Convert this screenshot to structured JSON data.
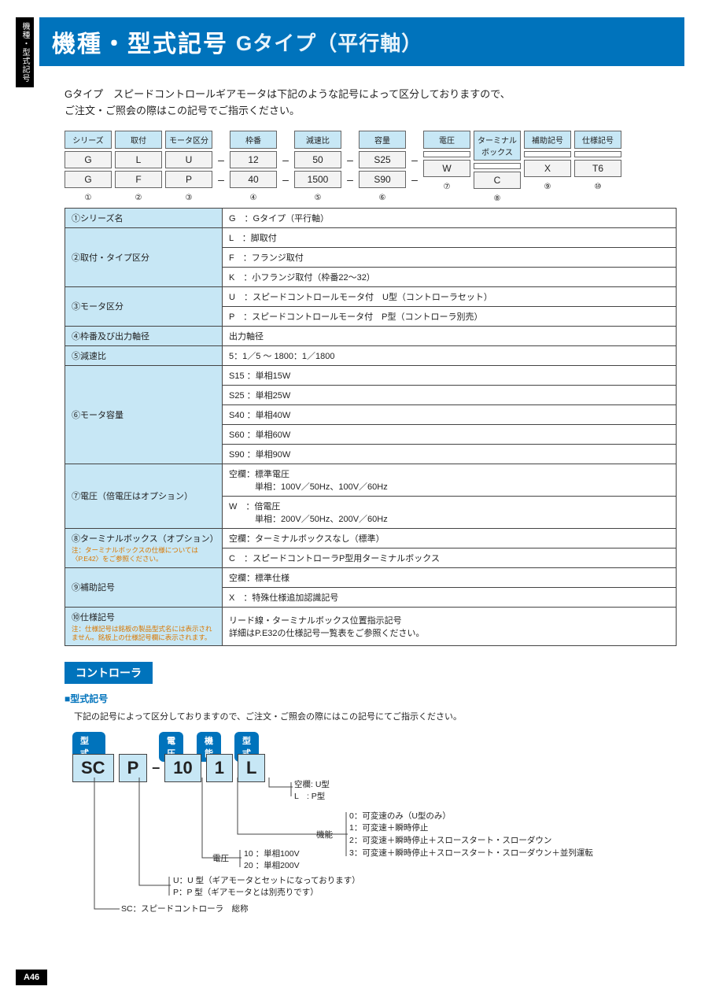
{
  "side_tab": "機種・型式記号",
  "title_main": "機種・型式記号",
  "title_sub": "Gタイプ（平行軸）",
  "intro_l1": "Gタイプ　スピードコントロールギアモータは下記のような記号によって区分しておりますので、",
  "intro_l2": "ご注文・ご照会の際はこの記号でご指示ください。",
  "grid": {
    "headers": [
      "シリーズ",
      "取付",
      "モータ区分",
      "枠番",
      "減速比",
      "容量",
      "電圧",
      "ターミナル\nボックス",
      "補助記号",
      "仕様記号"
    ],
    "row1": [
      "G",
      "L",
      "U",
      "12",
      "50",
      "S25",
      "",
      "",
      "",
      ""
    ],
    "row2": [
      "G",
      "F",
      "P",
      "40",
      "1500",
      "S90",
      "W",
      "C",
      "X",
      "T6"
    ],
    "nums": [
      "①",
      "②",
      "③",
      "④",
      "⑤",
      "⑥",
      "⑦",
      "⑧",
      "⑨",
      "⑩"
    ]
  },
  "table": [
    {
      "label": "①シリーズ名",
      "rows": [
        "G　：Gタイプ（平行軸）"
      ]
    },
    {
      "label": "②取付・タイプ区分",
      "rows": [
        "L　：脚取付",
        "F　：フランジ取付",
        "K　：小フランジ取付（枠番22〜32）"
      ]
    },
    {
      "label": "③モータ区分",
      "rows": [
        "U　：スピードコントロールモータ付　U型（コントローラセット）",
        "P　：スピードコントロールモータ付　P型（コントローラ別売）"
      ]
    },
    {
      "label": "④枠番及び出力軸径",
      "rows": [
        "出力軸径"
      ]
    },
    {
      "label": "⑤減速比",
      "rows": [
        "5：1／5 〜 1800：1／1800"
      ]
    },
    {
      "label": "⑥モータ容量",
      "rows": [
        "S15 ：単相15W",
        "S25 ：単相25W",
        "S40 ：単相40W",
        "S60 ：単相60W",
        "S90 ：単相90W"
      ]
    },
    {
      "label": "⑦電圧（倍電圧はオプション）",
      "rows": [
        "空欄：標準電圧\n　　　単相：100V／50Hz、100V／60Hz",
        "W　：倍電圧\n　　　単相：200V／50Hz、200V／60Hz"
      ]
    },
    {
      "label": "⑧ターミナルボックス（オプション）",
      "note": "注：ターミナルボックスの仕様については〈P.E42〉をご参照ください。",
      "rows": [
        "空欄：ターミナルボックスなし（標準）",
        "C　：スピードコントローラP型用ターミナルボックス"
      ]
    },
    {
      "label": "⑨補助記号",
      "rows": [
        "空欄：標準仕様",
        "X　：特殊仕様追加認識記号"
      ]
    },
    {
      "label": "⑩仕様記号",
      "note": "注：仕様記号は銘板の製品型式名には表示されません。銘板上の仕様記号欄に表示されます。",
      "rows": [
        "リード線・ターミナルボックス位置指示記号\n詳細はP.E32の仕様記号一覧表をご参照ください。"
      ]
    }
  ],
  "controller": {
    "heading": "コントローラ",
    "sub": "■型式記号",
    "desc": "下記の記号によって区分しておりますので、ご注文・ご照会の際にはこの記号にてご指示ください。",
    "pills": [
      "型　式",
      "電圧",
      "機能",
      "型式"
    ],
    "boxes": [
      "SC",
      "P",
      "10",
      "1",
      "L"
    ],
    "leg_type": "空欄: U型\nL　: P型",
    "leg_func_label": "機能",
    "leg_func": "0：可変速のみ（U型のみ）\n1：可変速＋瞬時停止\n2：可変速＋瞬時停止＋スロースタート・スローダウン\n3：可変速＋瞬時停止＋スロースタート・スローダウン＋並列運転",
    "leg_volt_label": "電圧",
    "leg_volt": "10 ：単相100V\n20 ：単相200V",
    "leg_up": "U：U 型（ギアモータとセットになっております）\nP：P 型（ギアモータとは別売りです）",
    "leg_sc": "SC：スピードコントローラ　総称"
  },
  "page_num": "A46"
}
